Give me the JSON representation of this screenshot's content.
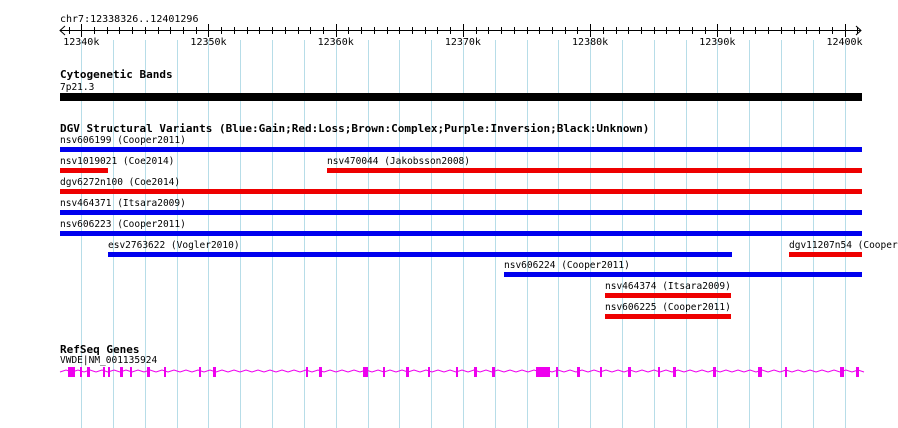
{
  "location": "chr7:12338326..12401296",
  "ruler": {
    "start": 12338326,
    "end": 12401296,
    "ticks": [
      "12340k",
      "12350k",
      "12360k",
      "12370k",
      "12380k",
      "12390k",
      "12400k"
    ],
    "tick_values": [
      12340000,
      12350000,
      12360000,
      12370000,
      12380000,
      12390000,
      12400000
    ]
  },
  "cytoband": {
    "title": "Cytogenetic Bands",
    "band": "7p21.3",
    "color": "#000000"
  },
  "dgv": {
    "title": "DGV Structural Variants (Blue:Gain;Red:Loss;Brown:Complex;Purple:Inversion;Black:Unknown)",
    "colors": {
      "gain": "#0000ee",
      "loss": "#ee0000"
    },
    "variants": [
      {
        "label": "nsv606199 (Cooper2011)",
        "type": "gain",
        "start": 12338326,
        "end": 12401296
      },
      {
        "label": "nsv1019021 (Coe2014)",
        "type": "loss",
        "start": 12338326,
        "end": 12342000
      },
      {
        "label": "nsv470044 (Jakobsson2008)",
        "type": "loss",
        "start": 12359350,
        "end": 12401296
      },
      {
        "label": "dgv6272n100 (Coe2014)",
        "type": "loss",
        "start": 12338326,
        "end": 12401296
      },
      {
        "label": "nsv464371 (Itsara2009)",
        "type": "gain",
        "start": 12338326,
        "end": 12401296
      },
      {
        "label": "nsv606223 (Cooper2011)",
        "type": "gain",
        "start": 12338326,
        "end": 12401296
      },
      {
        "label": "esv2763622 (Vogler2010)",
        "type": "gain",
        "start": 12342100,
        "end": 12391100
      },
      {
        "label": "dgv11207n54 (Cooper",
        "type": "loss",
        "start": 12395600,
        "end": 12401296
      },
      {
        "label": "nsv606224 (Cooper2011)",
        "type": "gain",
        "start": 12373200,
        "end": 12401296
      },
      {
        "label": "nsv464374 (Itsara2009)",
        "type": "loss",
        "start": 12381200,
        "end": 12391000
      },
      {
        "label": "nsv606225 (Cooper2011)",
        "type": "loss",
        "start": 12381200,
        "end": 12391000
      }
    ]
  },
  "refseq": {
    "title": "RefSeq Genes",
    "gene": "VWDE|NM_001135924",
    "color": "#ee00ee"
  }
}
